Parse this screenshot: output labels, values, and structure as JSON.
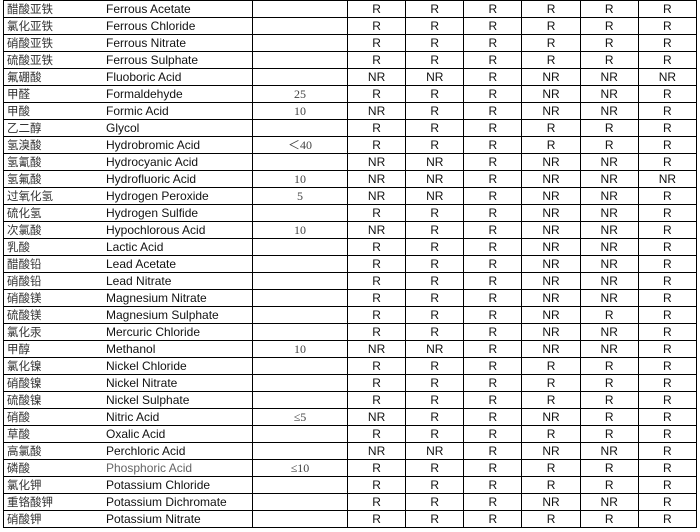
{
  "rows": [
    {
      "cn": "醋酸亚铁",
      "en": "Ferrous Acetate",
      "conc": "",
      "r": [
        "R",
        "R",
        "R",
        "R",
        "R",
        "R"
      ]
    },
    {
      "cn": "氯化亚铁",
      "en": "Ferrous Chloride",
      "conc": "",
      "r": [
        "R",
        "R",
        "R",
        "R",
        "R",
        "R"
      ]
    },
    {
      "cn": "硝酸亚铁",
      "en": "Ferrous Nitrate",
      "conc": "",
      "r": [
        "R",
        "R",
        "R",
        "R",
        "R",
        "R"
      ]
    },
    {
      "cn": "硫酸亚铁",
      "en": "Ferrous Sulphate",
      "conc": "",
      "r": [
        "R",
        "R",
        "R",
        "R",
        "R",
        "R"
      ]
    },
    {
      "cn": "氟硼酸",
      "en": "Fluoboric Acid",
      "conc": "",
      "r": [
        "NR",
        "NR",
        "R",
        "NR",
        "NR",
        "NR"
      ]
    },
    {
      "cn": "甲醛",
      "en": "Formaldehyde",
      "conc": "25",
      "r": [
        "R",
        "R",
        "R",
        "NR",
        "NR",
        "R"
      ]
    },
    {
      "cn": "甲酸",
      "en": "Formic Acid",
      "conc": "10",
      "r": [
        "NR",
        "R",
        "R",
        "NR",
        "NR",
        "R"
      ]
    },
    {
      "cn": "乙二醇",
      "en": "Glycol",
      "conc": "",
      "r": [
        "R",
        "R",
        "R",
        "R",
        "R",
        "R"
      ]
    },
    {
      "cn": "氢溴酸",
      "en": "Hydrobromic Acid",
      "conc": "＜40",
      "r": [
        "R",
        "R",
        "R",
        "R",
        "R",
        "R"
      ]
    },
    {
      "cn": "氢氰酸",
      "en": "Hydrocyanic Acid",
      "conc": "",
      "r": [
        "NR",
        "NR",
        "R",
        "NR",
        "NR",
        "R"
      ]
    },
    {
      "cn": "氢氟酸",
      "en": "Hydrofluoric Acid",
      "conc": "10",
      "r": [
        "NR",
        "NR",
        "R",
        "NR",
        "NR",
        "NR"
      ]
    },
    {
      "cn": "过氧化氢",
      "en": "Hydrogen Peroxide",
      "conc": "5",
      "r": [
        "NR",
        "NR",
        "R",
        "NR",
        "NR",
        "R"
      ]
    },
    {
      "cn": "硫化氢",
      "en": "Hydrogen Sulfide",
      "conc": "",
      "r": [
        "R",
        "R",
        "R",
        "NR",
        "NR",
        "R"
      ]
    },
    {
      "cn": "次氯酸",
      "en": "Hypochlorous Acid",
      "conc": "10",
      "r": [
        "NR",
        "R",
        "R",
        "NR",
        "NR",
        "R"
      ]
    },
    {
      "cn": "乳酸",
      "en": "Lactic Acid",
      "conc": "",
      "r": [
        "R",
        "R",
        "R",
        "NR",
        "NR",
        "R"
      ]
    },
    {
      "cn": "醋酸铅",
      "en": "Lead Acetate",
      "conc": "",
      "r": [
        "R",
        "R",
        "R",
        "NR",
        "NR",
        "R"
      ]
    },
    {
      "cn": "硝酸铅",
      "en": "Lead Nitrate",
      "conc": "",
      "r": [
        "R",
        "R",
        "R",
        "NR",
        "NR",
        "R"
      ]
    },
    {
      "cn": "硝酸镁",
      "en": "Magnesium Nitrate",
      "conc": "",
      "r": [
        "R",
        "R",
        "R",
        "NR",
        "NR",
        "R"
      ]
    },
    {
      "cn": "硫酸镁",
      "en": "Magnesium Sulphate",
      "conc": "",
      "r": [
        "R",
        "R",
        "R",
        "NR",
        "R",
        "R"
      ]
    },
    {
      "cn": "氯化汞",
      "en": "Mercuric Chloride",
      "conc": "",
      "r": [
        "R",
        "R",
        "R",
        "NR",
        "NR",
        "R"
      ]
    },
    {
      "cn": "甲醇",
      "en": "Methanol",
      "conc": "10",
      "r": [
        "NR",
        "NR",
        "R",
        "NR",
        "NR",
        "R"
      ]
    },
    {
      "cn": "氯化镍",
      "en": "Nickel Chloride",
      "conc": "",
      "r": [
        "R",
        "R",
        "R",
        "R",
        "R",
        "R"
      ]
    },
    {
      "cn": "硝酸镍",
      "en": "Nickel Nitrate",
      "conc": "",
      "r": [
        "R",
        "R",
        "R",
        "R",
        "R",
        "R"
      ]
    },
    {
      "cn": "硫酸镍",
      "en": "Nickel Sulphate",
      "conc": "",
      "r": [
        "R",
        "R",
        "R",
        "R",
        "R",
        "R"
      ]
    },
    {
      "cn": "硝酸",
      "en": "Nitric Acid",
      "conc": "≤5",
      "r": [
        "NR",
        "R",
        "R",
        "NR",
        "R",
        "R"
      ]
    },
    {
      "cn": "草酸",
      "en": "Oxalic Acid",
      "conc": "",
      "r": [
        "R",
        "R",
        "R",
        "R",
        "R",
        "R"
      ]
    },
    {
      "cn": "高氯酸",
      "en": "Perchloric Acid",
      "conc": "",
      "r": [
        "NR",
        "NR",
        "R",
        "NR",
        "NR",
        "R"
      ]
    },
    {
      "cn": "磷酸",
      "en": "Phosphoric Acid",
      "conc": "≤10",
      "r": [
        "R",
        "R",
        "R",
        "R",
        "R",
        "R"
      ]
    },
    {
      "cn": "氯化钾",
      "en": "Potassium Chloride",
      "conc": "",
      "r": [
        "R",
        "R",
        "R",
        "R",
        "R",
        "R"
      ]
    },
    {
      "cn": "重铬酸钾",
      "en": "Potassium Dichromate",
      "conc": "",
      "r": [
        "R",
        "R",
        "R",
        "NR",
        "NR",
        "R"
      ]
    },
    {
      "cn": "硝酸钾",
      "en": "Potassium Nitrate",
      "conc": "",
      "r": [
        "R",
        "R",
        "R",
        "R",
        "R",
        "R"
      ]
    }
  ]
}
